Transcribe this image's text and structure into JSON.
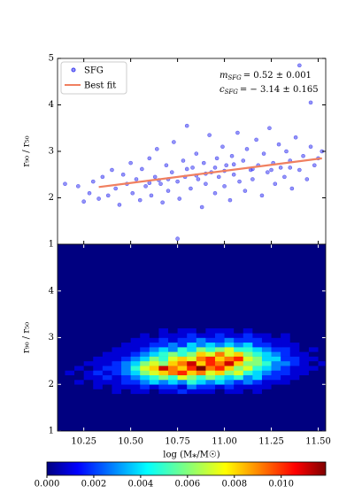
{
  "chart_data": [
    {
      "type": "scatter",
      "xlim": [
        10.11,
        11.54
      ],
      "ylim": [
        1,
        5
      ],
      "xticks": [
        10.25,
        10.5,
        10.75,
        11.0,
        11.25,
        11.5
      ],
      "yticks": [
        1,
        2,
        3,
        4,
        5
      ],
      "ylabel": "r₉₀ / r₅₀",
      "legend": "upper left",
      "annotations": [
        {
          "symbol": "m",
          "subscript": "SFG",
          "text": "= 0.52 ± 0.001"
        },
        {
          "symbol": "c",
          "subscript": "SFG",
          "text": "= − 3.14 ± 0.165"
        }
      ],
      "x": [
        10.22,
        10.25,
        10.28,
        10.3,
        10.33,
        10.35,
        10.38,
        10.4,
        10.42,
        10.44,
        10.46,
        10.48,
        10.5,
        10.51,
        10.53,
        10.55,
        10.56,
        10.58,
        10.6,
        10.61,
        10.63,
        10.64,
        10.66,
        10.67,
        10.69,
        10.7,
        10.72,
        10.73,
        10.75,
        10.76,
        10.78,
        10.79,
        10.8,
        10.82,
        10.83,
        10.85,
        10.86,
        10.88,
        10.89,
        10.9,
        10.92,
        10.93,
        10.95,
        10.96,
        10.97,
        10.99,
        11.0,
        11.01,
        11.03,
        11.04,
        11.05,
        11.07,
        11.08,
        11.1,
        11.11,
        11.12,
        11.14,
        11.15,
        11.17,
        11.18,
        11.2,
        11.21,
        11.23,
        11.24,
        11.26,
        11.27,
        11.29,
        11.3,
        11.32,
        11.33,
        11.35,
        11.36,
        11.38,
        11.4,
        11.42,
        11.44,
        11.46,
        11.48,
        11.5,
        11.52,
        11.46,
        11.4,
        10.75,
        10.8,
        10.9,
        11.0,
        10.7,
        10.95,
        11.05,
        10.85,
        11.15,
        10.65,
        11.25,
        10.6,
        11.35,
        10.15
      ],
      "series": [
        {
          "name": "SFG",
          "color": "#3c3cf0",
          "values": [
            2.25,
            1.92,
            2.1,
            2.35,
            1.98,
            2.45,
            2.05,
            2.6,
            2.2,
            1.85,
            2.5,
            2.3,
            2.75,
            2.1,
            2.4,
            1.95,
            2.62,
            2.25,
            2.85,
            2.05,
            2.45,
            3.05,
            2.3,
            1.9,
            2.7,
            2.15,
            2.55,
            3.2,
            2.35,
            1.98,
            2.8,
            2.45,
            3.55,
            2.2,
            2.65,
            2.95,
            2.4,
            1.8,
            2.75,
            2.3,
            3.35,
            2.55,
            2.1,
            2.85,
            2.45,
            3.1,
            2.25,
            2.7,
            1.95,
            2.9,
            2.5,
            3.4,
            2.35,
            2.8,
            2.15,
            3.05,
            2.6,
            2.4,
            3.25,
            2.7,
            2.05,
            2.95,
            2.55,
            3.5,
            2.75,
            2.3,
            3.15,
            2.65,
            2.45,
            3.0,
            2.8,
            2.2,
            3.3,
            2.6,
            2.9,
            2.4,
            3.1,
            2.7,
            2.85,
            3.0,
            4.05,
            4.85,
            1.12,
            2.62,
            2.52,
            2.58,
            2.4,
            2.65,
            2.72,
            2.48,
            2.62,
            2.38,
            2.6,
            2.32,
            2.65,
            2.3
          ]
        },
        {
          "name": "Best fit",
          "color": "#f08060",
          "x": [
            10.33,
            11.52
          ],
          "values": [
            2.232,
            2.85
          ]
        }
      ]
    },
    {
      "type": "heatmap",
      "xlim": [
        10.11,
        11.54
      ],
      "ylim": [
        1,
        5
      ],
      "xticks": [
        {
          "value": 10.25,
          "label": "10.25"
        },
        {
          "value": 10.5,
          "label": "10.50"
        },
        {
          "value": 10.75,
          "label": "10.75"
        },
        {
          "value": 11.0,
          "label": "11.00"
        },
        {
          "value": 11.25,
          "label": "11.25"
        },
        {
          "value": 11.5,
          "label": "11.50"
        }
      ],
      "yticks": [
        1,
        2,
        3,
        4
      ],
      "ylabel": "r₉₀ / r₅₀",
      "xlabel": "log (M⁎/M☉)",
      "x_bins": [
        10.15,
        10.2,
        10.25,
        10.3,
        10.35,
        10.4,
        10.45,
        10.5,
        10.55,
        10.6,
        10.65,
        10.7,
        10.75,
        10.8,
        10.85,
        10.9,
        10.95,
        11.0,
        11.05,
        11.1,
        11.15,
        11.2,
        11.25,
        11.3,
        11.35,
        11.4,
        11.45,
        11.5,
        11.55
      ],
      "y_bins": [
        1.8,
        1.9,
        2.0,
        2.1,
        2.2,
        2.3,
        2.4,
        2.5,
        2.6,
        2.7,
        2.8,
        2.9,
        3.0,
        3.1,
        3.2
      ],
      "colormap": "jet",
      "clim": [
        0,
        0.0119
      ],
      "colorbar_ticks": [
        {
          "value": 0,
          "label": "0.000"
        },
        {
          "value": 0.002,
          "label": "0.002"
        },
        {
          "value": 0.004,
          "label": "0.004"
        },
        {
          "value": 0.006,
          "label": "0.006"
        },
        {
          "value": 0.008,
          "label": "0.008"
        },
        {
          "value": 0.01,
          "label": "0.010"
        }
      ],
      "values": [
        [
          0,
          0,
          0,
          0,
          0,
          0.001,
          0,
          0.001,
          0.001,
          0,
          0.001,
          0.001,
          0.002,
          0.001,
          0.001,
          0.001,
          0,
          0.001,
          0.001,
          0,
          0.001,
          0,
          0,
          0,
          0,
          0,
          0,
          0
        ],
        [
          0,
          0,
          0,
          0.001,
          0,
          0.001,
          0.001,
          0.001,
          0.002,
          0.001,
          0.002,
          0.002,
          0.001,
          0.003,
          0.002,
          0.002,
          0.001,
          0.002,
          0.001,
          0.001,
          0.001,
          0.001,
          0,
          0,
          0,
          0,
          0,
          0
        ],
        [
          0,
          0.001,
          0,
          0.001,
          0.001,
          0.001,
          0.002,
          0.002,
          0.003,
          0.004,
          0.003,
          0.004,
          0.003,
          0.005,
          0.004,
          0.003,
          0.004,
          0.003,
          0.002,
          0.003,
          0.002,
          0.001,
          0.001,
          0.001,
          0,
          0,
          0,
          0
        ],
        [
          0,
          0,
          0.001,
          0.001,
          0.002,
          0.001,
          0.002,
          0.003,
          0.004,
          0.005,
          0.006,
          0.005,
          0.007,
          0.006,
          0.005,
          0.006,
          0.005,
          0.004,
          0.005,
          0.003,
          0.004,
          0.002,
          0.002,
          0.001,
          0.001,
          0,
          0,
          0
        ],
        [
          0.001,
          0,
          0.001,
          0.002,
          0.001,
          0.002,
          0.003,
          0.004,
          0.006,
          0.007,
          0.008,
          0.009,
          0.01,
          0.008,
          0.009,
          0.007,
          0.008,
          0.006,
          0.007,
          0.005,
          0.004,
          0.003,
          0.002,
          0.002,
          0.001,
          0.001,
          0,
          0
        ],
        [
          0,
          0.001,
          0,
          0.001,
          0.002,
          0.002,
          0.003,
          0.005,
          0.007,
          0.008,
          0.011,
          0.009,
          0.008,
          0.01,
          0.012,
          0.009,
          0.01,
          0.008,
          0.006,
          0.007,
          0.005,
          0.004,
          0.003,
          0.002,
          0.001,
          0.001,
          0.001,
          0
        ],
        [
          0,
          0,
          0.001,
          0.001,
          0.001,
          0.002,
          0.003,
          0.004,
          0.006,
          0.007,
          0.006,
          0.008,
          0.009,
          0.011,
          0.008,
          0.01,
          0.009,
          0.011,
          0.008,
          0.006,
          0.006,
          0.005,
          0.003,
          0.003,
          0.002,
          0.001,
          0,
          0.001
        ],
        [
          0,
          0,
          0,
          0.001,
          0.001,
          0.001,
          0.002,
          0.003,
          0.004,
          0.006,
          0.005,
          0.007,
          0.008,
          0.007,
          0.009,
          0.01,
          0.008,
          0.009,
          0.01,
          0.007,
          0.006,
          0.004,
          0.004,
          0.002,
          0.002,
          0.001,
          0.001,
          0
        ],
        [
          0,
          0,
          0,
          0,
          0.001,
          0.001,
          0.001,
          0.002,
          0.003,
          0.004,
          0.005,
          0.006,
          0.005,
          0.006,
          0.008,
          0.007,
          0.009,
          0.007,
          0.008,
          0.006,
          0.005,
          0.004,
          0.003,
          0.002,
          0.001,
          0.001,
          0,
          0
        ],
        [
          0,
          0,
          0,
          0,
          0,
          0.001,
          0.001,
          0.001,
          0.002,
          0.003,
          0.004,
          0.003,
          0.005,
          0.004,
          0.006,
          0.005,
          0.006,
          0.007,
          0.005,
          0.005,
          0.004,
          0.003,
          0.002,
          0.002,
          0.001,
          0,
          0.001,
          0
        ],
        [
          0,
          0,
          0,
          0,
          0,
          0,
          0.001,
          0.001,
          0.001,
          0.002,
          0.002,
          0.003,
          0.002,
          0.004,
          0.003,
          0.004,
          0.003,
          0.004,
          0.003,
          0.004,
          0.002,
          0.002,
          0.001,
          0.001,
          0.001,
          0,
          0,
          0
        ],
        [
          0,
          0,
          0,
          0,
          0,
          0,
          0,
          0.001,
          0.001,
          0.001,
          0.002,
          0.001,
          0.002,
          0.002,
          0.003,
          0.002,
          0.002,
          0.003,
          0.002,
          0.002,
          0.002,
          0.001,
          0.001,
          0.001,
          0,
          0,
          0,
          0
        ],
        [
          0,
          0,
          0,
          0,
          0,
          0,
          0,
          0,
          0.001,
          0,
          0.001,
          0.001,
          0.001,
          0.002,
          0.001,
          0.001,
          0.002,
          0.001,
          0.001,
          0.002,
          0.001,
          0.001,
          0,
          0.001,
          0,
          0,
          0,
          0
        ],
        [
          0,
          0,
          0,
          0,
          0,
          0,
          0,
          0,
          0,
          0,
          0.001,
          0,
          0.001,
          0.001,
          0,
          0.001,
          0.001,
          0.001,
          0,
          0.001,
          0,
          0,
          0,
          0,
          0,
          0,
          0,
          0
        ]
      ]
    }
  ]
}
